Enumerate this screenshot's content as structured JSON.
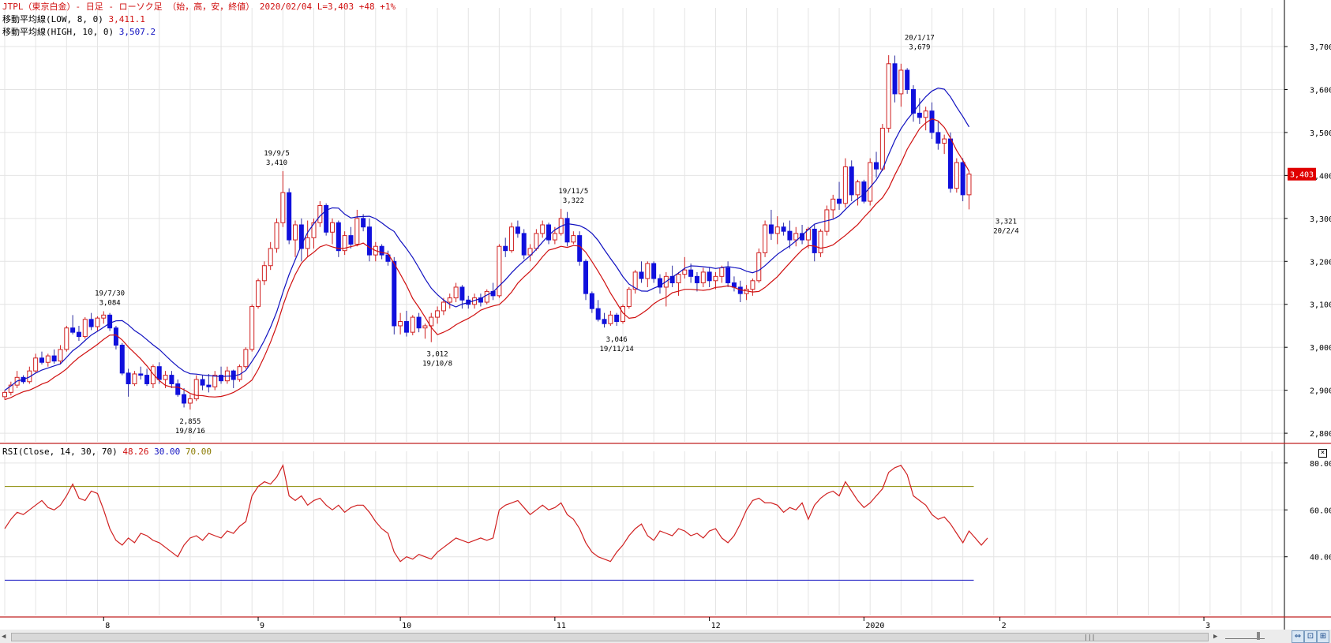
{
  "header": {
    "symbol_title": "JTPL（東京白金）- 日足 - ローソク足 （始，高，安，終値）",
    "date": "2020/02/04",
    "last": "L=3,403",
    "change": "+48",
    "change_pct": "+1%",
    "ma_low_label": "移動平均線(LOW, 8, 0)",
    "ma_low_value": "3,411.1",
    "ma_high_label": "移動平均線(HIGH, 10, 0)",
    "ma_high_value": "3,507.2",
    "rsi_label": "RSI(Close, 14, 30, 70)",
    "rsi_value": "48.26",
    "rsi_low": "30.00",
    "rsi_high": "70.00"
  },
  "price_badge": "3,403",
  "colors": {
    "up": "#d02020",
    "down": "#1010dd",
    "ma_low": "#d01010",
    "ma_high": "#1010c0",
    "rsi_line": "#d02020",
    "rsi_upper": "#8a8a00",
    "rsi_lower": "#1010c0",
    "separator": "#c02020",
    "badge": "#e00000"
  },
  "chart_data": [
    {
      "type": "candlestick",
      "ylim": [
        2780,
        3790
      ],
      "y_ticks": [
        "2,800",
        "2,900",
        "3,000",
        "3,100",
        "3,200",
        "3,300",
        "3,400",
        "3,500",
        "3,600",
        "3,700"
      ],
      "y_tick_values": [
        2800,
        2900,
        3000,
        3100,
        3200,
        3300,
        3400,
        3500,
        3600,
        3700
      ],
      "x_labels": [
        "8",
        "9",
        "10",
        "11",
        "12",
        "2020",
        "2",
        "3"
      ],
      "annotations": [
        {
          "date": "19/7/30",
          "value": "3,084",
          "i": 17,
          "price": 3084,
          "pos": "above"
        },
        {
          "date": "19/8/16",
          "value": "2,855",
          "i": 30,
          "price": 2855,
          "pos": "below"
        },
        {
          "date": "19/9/5",
          "value": "3,410",
          "i": 44,
          "price": 3410,
          "pos": "above"
        },
        {
          "date": "19/10/8",
          "value": "3,012",
          "i": 70,
          "price": 3012,
          "pos": "below"
        },
        {
          "date": "19/11/5",
          "value": "3,322",
          "i": 92,
          "price": 3322,
          "pos": "above"
        },
        {
          "date": "19/11/14",
          "value": "3,046",
          "i": 99,
          "price": 3046,
          "pos": "below"
        },
        {
          "date": "20/1/17",
          "value": "3,679",
          "i": 148,
          "price": 3679,
          "pos": "above"
        },
        {
          "date": "20/2/4",
          "value": "3,321",
          "i": 162,
          "price": 3321,
          "pos": "below"
        }
      ],
      "month_index": {
        "8": 16,
        "9": 41,
        "10": 64,
        "11": 89,
        "12": 114,
        "2020": 139,
        "2": 161,
        "3": 194
      },
      "candles": [
        [
          2885,
          2900,
          2878,
          2895
        ],
        [
          2895,
          2920,
          2888,
          2912
        ],
        [
          2912,
          2945,
          2905,
          2930
        ],
        [
          2930,
          2935,
          2915,
          2920
        ],
        [
          2920,
          2955,
          2915,
          2945
        ],
        [
          2945,
          2985,
          2940,
          2975
        ],
        [
          2975,
          2990,
          2960,
          2965
        ],
        [
          2965,
          2985,
          2955,
          2980
        ],
        [
          2980,
          2995,
          2962,
          2968
        ],
        [
          2968,
          3005,
          2960,
          2995
        ],
        [
          2995,
          3050,
          2990,
          3045
        ],
        [
          3045,
          3075,
          3030,
          3035
        ],
        [
          3035,
          3050,
          3015,
          3025
        ],
        [
          3025,
          3070,
          3020,
          3065
        ],
        [
          3065,
          3080,
          3040,
          3048
        ],
        [
          3048,
          3072,
          3038,
          3068
        ],
        [
          3068,
          3084,
          3055,
          3075
        ],
        [
          3075,
          3080,
          3038,
          3045
        ],
        [
          3045,
          3050,
          2995,
          3005
        ],
        [
          3005,
          3010,
          2935,
          2940
        ],
        [
          2940,
          2950,
          2885,
          2915
        ],
        [
          2915,
          2945,
          2910,
          2938
        ],
        [
          2938,
          2955,
          2925,
          2935
        ],
        [
          2935,
          2950,
          2910,
          2915
        ],
        [
          2915,
          2960,
          2905,
          2955
        ],
        [
          2955,
          2965,
          2915,
          2925
        ],
        [
          2925,
          2945,
          2905,
          2935
        ],
        [
          2935,
          2945,
          2905,
          2915
        ],
        [
          2915,
          2925,
          2885,
          2890
        ],
        [
          2890,
          2905,
          2860,
          2870
        ],
        [
          2870,
          2890,
          2855,
          2880
        ],
        [
          2880,
          2935,
          2875,
          2925
        ],
        [
          2925,
          2935,
          2900,
          2912
        ],
        [
          2912,
          2938,
          2895,
          2908
        ],
        [
          2908,
          2945,
          2900,
          2935
        ],
        [
          2935,
          2955,
          2915,
          2922
        ],
        [
          2922,
          2955,
          2915,
          2945
        ],
        [
          2945,
          2948,
          2905,
          2925
        ],
        [
          2925,
          2960,
          2920,
          2955
        ],
        [
          2955,
          3000,
          2950,
          2995
        ],
        [
          2995,
          3100,
          2990,
          3095
        ],
        [
          3095,
          3160,
          3090,
          3155
        ],
        [
          3155,
          3200,
          3145,
          3190
        ],
        [
          3190,
          3245,
          3180,
          3230
        ],
        [
          3230,
          3300,
          3220,
          3290
        ],
        [
          3290,
          3410,
          3280,
          3360
        ],
        [
          3360,
          3370,
          3240,
          3250
        ],
        [
          3250,
          3295,
          3210,
          3285
        ],
        [
          3285,
          3300,
          3200,
          3230
        ],
        [
          3230,
          3295,
          3210,
          3255
        ],
        [
          3255,
          3300,
          3230,
          3290
        ],
        [
          3290,
          3340,
          3280,
          3330
        ],
        [
          3330,
          3335,
          3260,
          3268
        ],
        [
          3268,
          3300,
          3240,
          3290
        ],
        [
          3290,
          3295,
          3210,
          3225
        ],
        [
          3225,
          3270,
          3215,
          3260
        ],
        [
          3260,
          3280,
          3230,
          3240
        ],
        [
          3240,
          3320,
          3235,
          3300
        ],
        [
          3300,
          3310,
          3270,
          3280
        ],
        [
          3280,
          3300,
          3200,
          3215
        ],
        [
          3215,
          3245,
          3200,
          3235
        ],
        [
          3235,
          3240,
          3205,
          3215
        ],
        [
          3215,
          3225,
          3190,
          3200
        ],
        [
          3200,
          3210,
          3030,
          3050
        ],
        [
          3050,
          3080,
          3030,
          3060
        ],
        [
          3060,
          3085,
          3025,
          3035
        ],
        [
          3035,
          3075,
          3028,
          3070
        ],
        [
          3070,
          3080,
          3035,
          3045
        ],
        [
          3045,
          3055,
          3020,
          3050
        ],
        [
          3050,
          3080,
          3012,
          3070
        ],
        [
          3070,
          3095,
          3055,
          3085
        ],
        [
          3085,
          3115,
          3075,
          3105
        ],
        [
          3105,
          3125,
          3090,
          3115
        ],
        [
          3115,
          3150,
          3105,
          3140
        ],
        [
          3140,
          3145,
          3090,
          3110
        ],
        [
          3110,
          3120,
          3090,
          3100
        ],
        [
          3100,
          3125,
          3090,
          3115
        ],
        [
          3115,
          3125,
          3095,
          3105
        ],
        [
          3105,
          3135,
          3100,
          3130
        ],
        [
          3130,
          3150,
          3110,
          3120
        ],
        [
          3120,
          3240,
          3115,
          3235
        ],
        [
          3235,
          3255,
          3210,
          3225
        ],
        [
          3225,
          3290,
          3220,
          3280
        ],
        [
          3280,
          3295,
          3255,
          3265
        ],
        [
          3265,
          3275,
          3205,
          3215
        ],
        [
          3215,
          3240,
          3200,
          3230
        ],
        [
          3230,
          3275,
          3225,
          3265
        ],
        [
          3265,
          3295,
          3255,
          3285
        ],
        [
          3285,
          3290,
          3240,
          3250
        ],
        [
          3250,
          3280,
          3240,
          3265
        ],
        [
          3265,
          3322,
          3260,
          3300
        ],
        [
          3300,
          3315,
          3235,
          3245
        ],
        [
          3245,
          3270,
          3240,
          3260
        ],
        [
          3260,
          3270,
          3190,
          3200
        ],
        [
          3200,
          3205,
          3110,
          3125
        ],
        [
          3125,
          3130,
          3080,
          3090
        ],
        [
          3090,
          3110,
          3060,
          3065
        ],
        [
          3065,
          3080,
          3046,
          3055
        ],
        [
          3055,
          3085,
          3050,
          3075
        ],
        [
          3075,
          3080,
          3050,
          3060
        ],
        [
          3060,
          3100,
          3055,
          3095
        ],
        [
          3095,
          3140,
          3090,
          3135
        ],
        [
          3135,
          3180,
          3125,
          3175
        ],
        [
          3175,
          3200,
          3150,
          3160
        ],
        [
          3160,
          3200,
          3140,
          3195
        ],
        [
          3195,
          3200,
          3150,
          3160
        ],
        [
          3160,
          3170,
          3125,
          3140
        ],
        [
          3140,
          3175,
          3095,
          3165
        ],
        [
          3165,
          3190,
          3140,
          3150
        ],
        [
          3150,
          3175,
          3120,
          3170
        ],
        [
          3170,
          3210,
          3160,
          3180
        ],
        [
          3180,
          3195,
          3150,
          3165
        ],
        [
          3165,
          3175,
          3130,
          3150
        ],
        [
          3150,
          3185,
          3140,
          3175
        ],
        [
          3175,
          3185,
          3140,
          3155
        ],
        [
          3155,
          3175,
          3135,
          3165
        ],
        [
          3165,
          3190,
          3150,
          3185
        ],
        [
          3185,
          3200,
          3140,
          3150
        ],
        [
          3150,
          3165,
          3130,
          3140
        ],
        [
          3140,
          3155,
          3105,
          3125
        ],
        [
          3125,
          3145,
          3110,
          3135
        ],
        [
          3135,
          3160,
          3120,
          3155
        ],
        [
          3155,
          3230,
          3150,
          3220
        ],
        [
          3220,
          3295,
          3210,
          3285
        ],
        [
          3285,
          3320,
          3250,
          3265
        ],
        [
          3265,
          3305,
          3240,
          3280
        ],
        [
          3280,
          3290,
          3260,
          3270
        ],
        [
          3270,
          3295,
          3230,
          3250
        ],
        [
          3250,
          3280,
          3235,
          3265
        ],
        [
          3265,
          3285,
          3240,
          3250
        ],
        [
          3250,
          3280,
          3230,
          3275
        ],
        [
          3275,
          3285,
          3200,
          3220
        ],
        [
          3220,
          3275,
          3210,
          3270
        ],
        [
          3270,
          3330,
          3260,
          3320
        ],
        [
          3320,
          3355,
          3300,
          3345
        ],
        [
          3345,
          3385,
          3320,
          3335
        ],
        [
          3335,
          3440,
          3325,
          3420
        ],
        [
          3420,
          3435,
          3340,
          3355
        ],
        [
          3355,
          3390,
          3330,
          3385
        ],
        [
          3385,
          3390,
          3335,
          3340
        ],
        [
          3340,
          3440,
          3330,
          3430
        ],
        [
          3430,
          3455,
          3395,
          3415
        ],
        [
          3415,
          3520,
          3410,
          3510
        ],
        [
          3510,
          3680,
          3500,
          3660
        ],
        [
          3660,
          3679,
          3570,
          3590
        ],
        [
          3590,
          3660,
          3560,
          3645
        ],
        [
          3645,
          3650,
          3590,
          3600
        ],
        [
          3600,
          3610,
          3525,
          3545
        ],
        [
          3545,
          3580,
          3520,
          3535
        ],
        [
          3535,
          3560,
          3505,
          3550
        ],
        [
          3550,
          3570,
          3485,
          3500
        ],
        [
          3500,
          3525,
          3460,
          3475
        ],
        [
          3475,
          3495,
          3450,
          3485
        ],
        [
          3485,
          3500,
          3360,
          3370
        ],
        [
          3370,
          3440,
          3360,
          3430
        ],
        [
          3430,
          3440,
          3340,
          3355
        ],
        [
          3355,
          3410,
          3321,
          3403
        ]
      ]
    },
    {
      "type": "line",
      "title": "RSI(Close, 14, 30, 70)",
      "ylim": [
        15,
        85
      ],
      "y_ticks": [
        "40.00",
        "60.00",
        "80.00"
      ],
      "y_tick_values": [
        40,
        60,
        80
      ],
      "upper": 70,
      "lower": 30,
      "values": [
        52,
        56,
        59,
        58,
        60,
        62,
        64,
        61,
        60,
        62,
        66,
        71,
        65,
        64,
        68,
        67,
        60,
        52,
        47,
        45,
        48,
        46,
        50,
        49,
        47,
        46,
        44,
        42,
        40,
        45,
        48,
        49,
        47,
        50,
        49,
        48,
        51,
        50,
        53,
        55,
        66,
        70,
        72,
        71,
        74,
        79,
        66,
        64,
        66,
        62,
        64,
        65,
        62,
        60,
        62,
        59,
        61,
        62,
        62,
        59,
        55,
        52,
        50,
        42,
        38,
        40,
        39,
        41,
        40,
        39,
        42,
        44,
        46,
        48,
        47,
        46,
        47,
        48,
        47,
        48,
        60,
        62,
        63,
        64,
        61,
        58,
        60,
        62,
        60,
        61,
        63,
        58,
        56,
        52,
        46,
        42,
        40,
        39,
        38,
        42,
        45,
        49,
        52,
        54,
        49,
        47,
        51,
        50,
        49,
        52,
        51,
        49,
        50,
        48,
        51,
        52,
        48,
        46,
        49,
        54,
        60,
        64,
        65,
        63,
        63,
        62,
        59,
        61,
        60,
        63,
        56,
        62,
        65,
        67,
        68,
        66,
        72,
        68,
        64,
        61,
        63,
        66,
        69,
        76,
        78,
        79,
        75,
        66,
        64,
        62,
        58,
        56,
        57,
        54,
        50,
        46,
        51,
        48,
        45,
        48
      ]
    }
  ]
}
